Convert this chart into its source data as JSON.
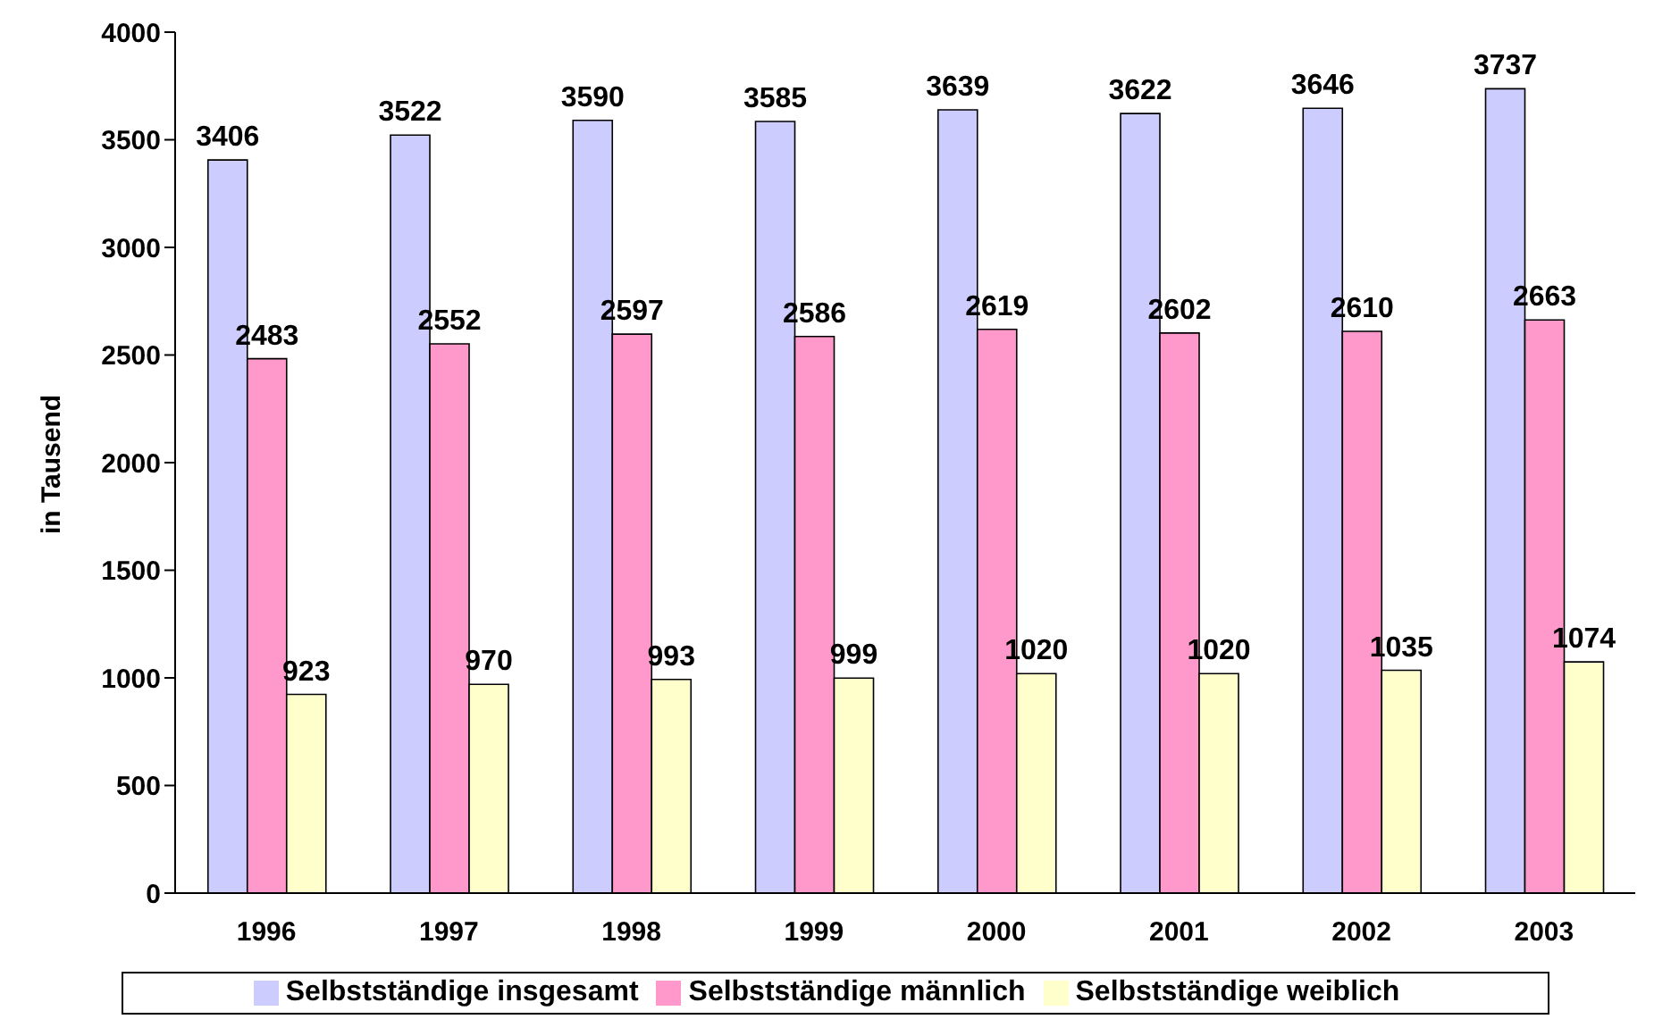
{
  "chart_data": {
    "type": "bar",
    "ylabel": "in Tausend",
    "categories": [
      "1996",
      "1997",
      "1998",
      "1999",
      "2000",
      "2001",
      "2002",
      "2003"
    ],
    "series": [
      {
        "name": "Selbstständige insgesamt",
        "color": "#ccccff",
        "values": [
          3406,
          3522,
          3590,
          3585,
          3639,
          3622,
          3646,
          3737
        ]
      },
      {
        "name": "Selbstständige männlich",
        "color": "#ff99cc",
        "values": [
          2483,
          2552,
          2597,
          2586,
          2619,
          2602,
          2610,
          2663
        ]
      },
      {
        "name": "Selbstständige weiblich",
        "color": "#ffffcc",
        "values": [
          923,
          970,
          993,
          999,
          1020,
          1020,
          1035,
          1074
        ]
      }
    ],
    "ylim": [
      0,
      4000
    ],
    "yticks": [
      0,
      500,
      1000,
      1500,
      2000,
      2500,
      3000,
      3500,
      4000
    ],
    "data_labels": true,
    "legend": "bottom",
    "grid": false
  }
}
